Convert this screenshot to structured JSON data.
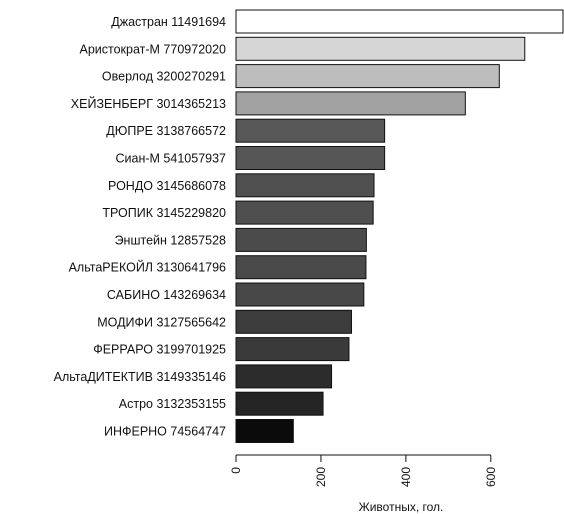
{
  "chart_data": {
    "type": "bar",
    "orientation": "horizontal",
    "categories": [
      "Джастран 11491694",
      "Аристократ-М 770972020",
      "Оверлод 3200270291",
      "ХЕЙЗЕНБЕРГ 3014365213",
      "ДЮПРЕ 3138766572",
      "Сиан-М 541057937",
      "РОНДО 3145686078",
      "ТРОПИК 3145229820",
      "Энштейн 12857528",
      "АльтаРЕКОЙЛ 3130641796",
      "САБИНО 143269634",
      "МОДИФИ 3127565642",
      "ФЕРРАРО 3199701925",
      "АльтаДИТЕКТИВ 3149335146",
      "Астро 3132353155",
      "ИНФЕРНО 74564747"
    ],
    "values": [
      770,
      680,
      620,
      540,
      350,
      350,
      325,
      323,
      307,
      306,
      301,
      272,
      266,
      225,
      205,
      135
    ],
    "bar_colors": [
      "#ffffff",
      "#d6d6d6",
      "#bdbdbd",
      "#a2a2a2",
      "#575757",
      "#565656",
      "#505050",
      "#4f4f4f",
      "#4b4b4b",
      "#4a4a4a",
      "#484848",
      "#3c3c3c",
      "#3a3a3a",
      "#2c2c2c",
      "#252525",
      "#0b0b0b"
    ],
    "xticks": [
      0,
      200,
      400,
      600
    ],
    "xlim": [
      0,
      770
    ],
    "xlabel": "Животных, гол.",
    "title": "",
    "grid": false
  }
}
